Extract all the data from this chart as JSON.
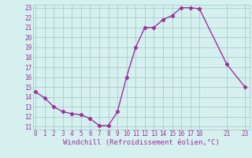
{
  "x": [
    0,
    1,
    2,
    3,
    4,
    5,
    6,
    7,
    8,
    9,
    10,
    11,
    12,
    13,
    14,
    15,
    16,
    17,
    18,
    21,
    23
  ],
  "y": [
    14.5,
    13.9,
    13.0,
    12.5,
    12.3,
    12.2,
    11.8,
    11.1,
    11.1,
    12.5,
    16.0,
    19.0,
    21.0,
    21.0,
    21.8,
    22.2,
    23.0,
    23.0,
    22.9,
    17.3,
    15.0
  ],
  "line_color": "#993399",
  "marker": "D",
  "marker_size": 2.2,
  "bg_color": "#d6f0f0",
  "grid_color": "#aacccc",
  "xlabel": "Windchill (Refroidissement éolien,°C)",
  "xlabel_color": "#993399",
  "ylim": [
    11,
    23
  ],
  "yticks": [
    11,
    12,
    13,
    14,
    15,
    16,
    17,
    18,
    19,
    20,
    21,
    22,
    23
  ],
  "xticks": [
    0,
    1,
    2,
    3,
    4,
    5,
    6,
    7,
    8,
    9,
    10,
    11,
    12,
    13,
    14,
    15,
    16,
    17,
    18,
    21,
    23
  ],
  "xlim": [
    -0.3,
    23.5
  ],
  "tick_color": "#993399",
  "tick_fontsize": 5.5,
  "xlabel_fontsize": 6.5,
  "linewidth": 1.0
}
